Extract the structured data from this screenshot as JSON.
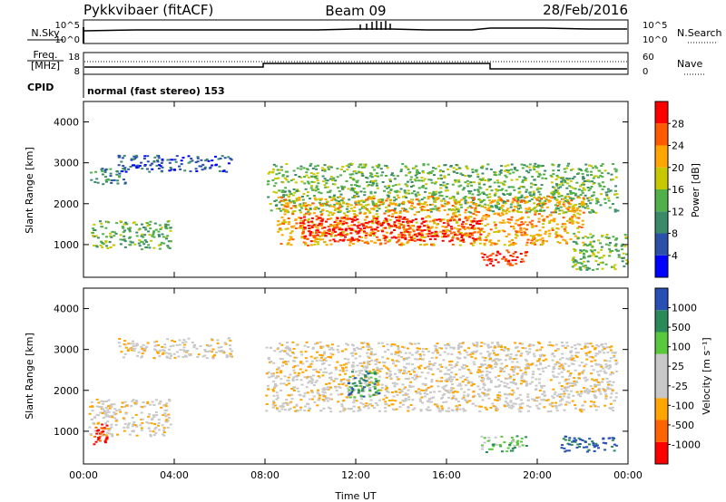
{
  "header": {
    "station": "Pykkvibaer (fitACF)",
    "beam": "Beam 09",
    "date": "28/Feb/2016"
  },
  "strips": {
    "nsky": {
      "label": "N.Sky",
      "ticks": [
        "10^5",
        "10^0"
      ],
      "right_label": "N.Search",
      "right_ticks": [
        "10^5",
        "10^0"
      ]
    },
    "freq": {
      "label_line1": "Freq.",
      "label_line2": "[MHz]",
      "ticks": [
        "18",
        "8"
      ],
      "right_label": "Nave",
      "right_ticks": [
        "60",
        "0"
      ]
    },
    "cpid": {
      "label": "CPID",
      "mode_text": "normal (fast stereo) 153"
    }
  },
  "colors": {
    "power": [
      "#0000ff",
      "#2a50a8",
      "#3a8a6a",
      "#52b04a",
      "#c8c800",
      "#ffa500",
      "#ff5a00",
      "#ff0000"
    ],
    "velocity": [
      "#ff0000",
      "#ff6400",
      "#ffa500",
      "#c8c8c8",
      "#c8c8c8",
      "#5ac83c",
      "#2a8a5a",
      "#2850b4"
    ]
  },
  "chart_data": [
    {
      "type": "heatmap",
      "ylabel": "Slant Range [km]",
      "xlabel": "",
      "ylim": [
        200,
        4500
      ],
      "yticks": [
        "4000",
        "3000",
        "2000",
        "1000"
      ],
      "colorbar": {
        "label": "Power [dB]",
        "ticks": [
          "28",
          "24",
          "20",
          "16",
          "12",
          "8",
          "4"
        ],
        "range": [
          0,
          32
        ]
      },
      "regions": [
        {
          "t": [
            0.2,
            1.8
          ],
          "r": [
            2500,
            2900
          ],
          "level": 2
        },
        {
          "t": [
            0.3,
            3.8
          ],
          "r": [
            900,
            1600
          ],
          "level": 3
        },
        {
          "t": [
            1.5,
            6.5
          ],
          "r": [
            2800,
            3200
          ],
          "level": 1
        },
        {
          "t": [
            8.0,
            23.5
          ],
          "r": [
            1800,
            3000
          ],
          "level": 3
        },
        {
          "t": [
            8.5,
            22.0
          ],
          "r": [
            1000,
            2200
          ],
          "level": 5
        },
        {
          "t": [
            9.5,
            17.5
          ],
          "r": [
            1100,
            1700
          ],
          "level": 7
        },
        {
          "t": [
            17.5,
            19.5
          ],
          "r": [
            500,
            900
          ],
          "level": 7
        },
        {
          "t": [
            21.5,
            24.0
          ],
          "r": [
            400,
            1300
          ],
          "level": 3
        }
      ]
    },
    {
      "type": "heatmap",
      "ylabel": "Slant Range [km]",
      "xlabel": "Time UT",
      "ylim": [
        200,
        4500
      ],
      "yticks": [
        "4000",
        "3000",
        "2000",
        "1000"
      ],
      "xticks": [
        "00:00",
        "04:00",
        "08:00",
        "12:00",
        "16:00",
        "20:00",
        "00:00"
      ],
      "xlim": [
        0,
        24
      ],
      "colorbar": {
        "label": "Velocity [m s⁻¹]",
        "ticks": [
          "1000",
          "500",
          "100",
          "25",
          "-25",
          "-100",
          "-500",
          "-1000"
        ],
        "range": [
          -1200,
          1200
        ]
      },
      "regions": [
        {
          "t": [
            0.2,
            3.8
          ],
          "r": [
            900,
            1800
          ],
          "level": 3
        },
        {
          "t": [
            0.4,
            1.0
          ],
          "r": [
            700,
            1200
          ],
          "level": 0
        },
        {
          "t": [
            1.5,
            6.5
          ],
          "r": [
            2800,
            3300
          ],
          "level": 3
        },
        {
          "t": [
            8.0,
            23.5
          ],
          "r": [
            1500,
            3200
          ],
          "level": 3
        },
        {
          "t": [
            11.5,
            13.0
          ],
          "r": [
            1800,
            2500
          ],
          "level": 6
        },
        {
          "t": [
            17.5,
            19.5
          ],
          "r": [
            500,
            900
          ],
          "level": 5
        },
        {
          "t": [
            21.0,
            23.5
          ],
          "r": [
            500,
            900
          ],
          "level": 7
        }
      ]
    }
  ]
}
